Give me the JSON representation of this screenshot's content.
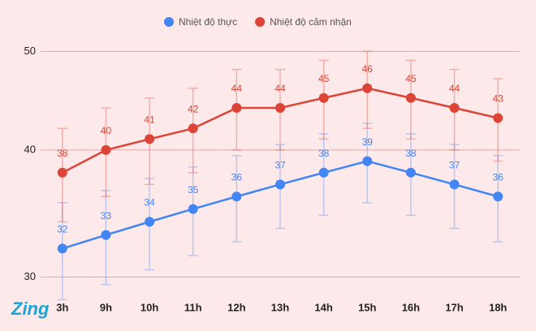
{
  "chart_data": {
    "type": "line",
    "categories": [
      "3h",
      "9h",
      "10h",
      "11h",
      "12h",
      "13h",
      "14h",
      "15h",
      "16h",
      "17h",
      "18h"
    ],
    "series": [
      {
        "name": "Nhiệt độ thực",
        "color": "#4285f4",
        "values": [
          32,
          33,
          34,
          35,
          36,
          37,
          38,
          39,
          38,
          37,
          36
        ],
        "errors": [
          3.5,
          3.5,
          3.5,
          3.5,
          3.5,
          3.5,
          3.5,
          3.5,
          3.5,
          3.5,
          3.5
        ]
      },
      {
        "name": "Nhiệt độ cảm nhận",
        "color": "#db4437",
        "values": [
          38,
          40,
          41,
          42,
          44,
          44,
          45,
          46,
          45,
          44,
          43
        ],
        "errors": [
          4,
          4,
          4,
          4,
          4,
          4,
          4,
          4,
          4,
          4,
          4
        ]
      }
    ],
    "ylim": [
      29,
      52
    ],
    "yticks": [
      30,
      40,
      50
    ],
    "log_scale": true,
    "grid": true,
    "legend": "top",
    "watermark": "Zing"
  }
}
